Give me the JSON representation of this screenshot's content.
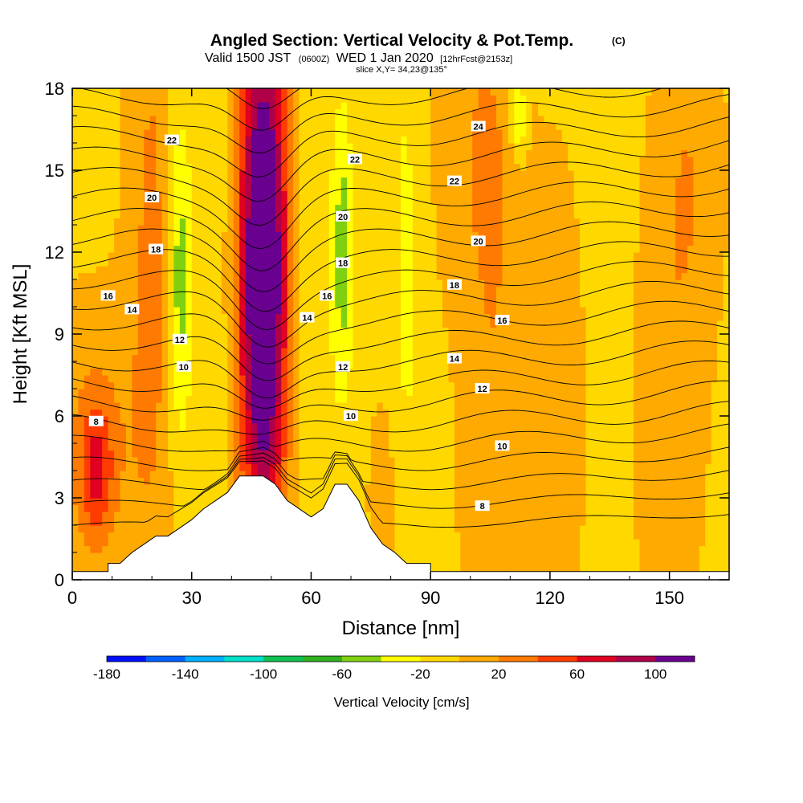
{
  "titles": {
    "main": "Angled Section: Vertical Velocity & Pot.Temp.",
    "main_tag": "(C)",
    "valid_prefix": "Valid 1500 JST",
    "valid_z": "(0600Z)",
    "valid_date": "WED 1 Jan 2020",
    "valid_fcst": "[12hrFcst@2153z]",
    "slice": "slice X,Y= 34,23@135°"
  },
  "chart_data": {
    "type": "heatmap",
    "xlabel": "Distance [nm]",
    "ylabel": "Height [Kft MSL]",
    "xlim": [
      0,
      165
    ],
    "ylim": [
      0,
      18
    ],
    "xticks": [
      0,
      30,
      60,
      90,
      120,
      150
    ],
    "yticks": [
      0,
      3,
      6,
      9,
      12,
      15,
      18
    ],
    "colorbar": {
      "label": "Vertical Velocity [cm/s]",
      "levels": [
        -180,
        -160,
        -140,
        -120,
        -100,
        -80,
        -60,
        -40,
        -20,
        0,
        20,
        40,
        60,
        80,
        100,
        120
      ],
      "tick_labels": [
        "-180",
        "-140",
        "-100",
        "-60",
        "-20",
        "20",
        "60",
        "100"
      ],
      "tick_values": [
        -180,
        -140,
        -100,
        -60,
        -20,
        20,
        60,
        100
      ],
      "colors": [
        "#0010ff",
        "#0060ff",
        "#00b0ff",
        "#00e0c8",
        "#10c050",
        "#30b020",
        "#80d010",
        "#ffff00",
        "#ffd800",
        "#ffaa00",
        "#ff7a00",
        "#ff3c00",
        "#e00020",
        "#b00048",
        "#6a0090"
      ]
    },
    "velocity_field": {
      "background_cm_s": -5,
      "features": [
        {
          "x": 48,
          "y": 11,
          "peak_cm_s": 110,
          "width_nm": 5,
          "height_kft": 8
        },
        {
          "x": 48,
          "y": 12,
          "peak_cm_s": 60,
          "width_nm": 8,
          "height_kft": 14
        },
        {
          "x": 20,
          "y": 12,
          "peak_cm_s": 30,
          "width_nm": 6,
          "height_kft": 12
        },
        {
          "x": 27,
          "y": 11,
          "peak_cm_s": -50,
          "width_nm": 3,
          "height_kft": 6
        },
        {
          "x": 68,
          "y": 12,
          "peak_cm_s": -45,
          "width_nm": 2.5,
          "height_kft": 5
        },
        {
          "x": 6,
          "y": 4,
          "peak_cm_s": 55,
          "width_nm": 4,
          "height_kft": 2.5
        },
        {
          "x": 6,
          "y": 5,
          "peak_cm_s": 25,
          "width_nm": 12,
          "height_kft": 5
        },
        {
          "x": 106,
          "y": 8,
          "peak_cm_s": 22,
          "width_nm": 8,
          "height_kft": 16
        },
        {
          "x": 100,
          "y": 16,
          "peak_cm_s": 15,
          "width_nm": 10,
          "height_kft": 6
        },
        {
          "x": 122,
          "y": 6,
          "peak_cm_s": 18,
          "width_nm": 6,
          "height_kft": 9
        },
        {
          "x": 150,
          "y": 6,
          "peak_cm_s": 20,
          "width_nm": 8,
          "height_kft": 8
        },
        {
          "x": 155,
          "y": 15,
          "peak_cm_s": 22,
          "width_nm": 8,
          "height_kft": 6
        },
        {
          "x": 78,
          "y": 3,
          "peak_cm_s": 25,
          "width_nm": 3,
          "height_kft": 3
        },
        {
          "x": 60,
          "y": 10,
          "peak_cm_s": -18,
          "width_nm": 6,
          "height_kft": 10
        },
        {
          "x": 112,
          "y": 17,
          "peak_cm_s": -45,
          "width_nm": 2,
          "height_kft": 1.5
        },
        {
          "x": 84,
          "y": 12,
          "peak_cm_s": -18,
          "width_nm": 4,
          "height_kft": 14
        },
        {
          "x": 36,
          "y": 12,
          "peak_cm_s": -15,
          "width_nm": 4,
          "height_kft": 14
        }
      ]
    },
    "terrain": {
      "x": [
        0,
        9,
        9,
        12,
        15,
        18,
        21,
        24,
        27,
        30,
        33,
        36,
        39,
        42,
        45,
        48,
        51,
        54,
        57,
        60,
        63,
        66,
        69,
        72,
        75,
        78,
        81,
        84,
        87,
        90,
        90,
        165
      ],
      "y_kft": [
        0.3,
        0.3,
        0.6,
        0.6,
        1.0,
        1.3,
        1.6,
        1.6,
        1.9,
        2.2,
        2.6,
        2.9,
        3.2,
        3.8,
        3.8,
        3.8,
        3.5,
        2.9,
        2.6,
        2.3,
        2.6,
        3.5,
        3.5,
        2.9,
        1.9,
        1.3,
        1.0,
        0.6,
        0.6,
        0.6,
        0.3,
        0.3
      ]
    },
    "potential_temperature": {
      "levels": [
        8,
        10,
        12,
        14,
        16,
        18,
        20,
        22,
        24
      ],
      "labels": [
        {
          "text": "8",
          "x": 6,
          "y": 5.8
        },
        {
          "text": "10",
          "x": 28,
          "y": 7.8
        },
        {
          "text": "12",
          "x": 27,
          "y": 8.8
        },
        {
          "text": "14",
          "x": 15,
          "y": 9.9
        },
        {
          "text": "16",
          "x": 9,
          "y": 10.4
        },
        {
          "text": "18",
          "x": 21,
          "y": 12.1
        },
        {
          "text": "20",
          "x": 20,
          "y": 14.0
        },
        {
          "text": "22",
          "x": 25,
          "y": 16.1
        },
        {
          "text": "14",
          "x": 59,
          "y": 9.6
        },
        {
          "text": "16",
          "x": 64,
          "y": 10.4
        },
        {
          "text": "18",
          "x": 68,
          "y": 11.6
        },
        {
          "text": "20",
          "x": 68,
          "y": 13.3
        },
        {
          "text": "22",
          "x": 71,
          "y": 15.4
        },
        {
          "text": "12",
          "x": 68,
          "y": 7.8
        },
        {
          "text": "10",
          "x": 70,
          "y": 6.0
        },
        {
          "text": "8",
          "x": 103,
          "y": 2.7
        },
        {
          "text": "10",
          "x": 108,
          "y": 4.9
        },
        {
          "text": "12",
          "x": 103,
          "y": 7.0
        },
        {
          "text": "14",
          "x": 96,
          "y": 8.1
        },
        {
          "text": "16",
          "x": 108,
          "y": 9.5
        },
        {
          "text": "18",
          "x": 96,
          "y": 10.8
        },
        {
          "text": "20",
          "x": 102,
          "y": 12.4
        },
        {
          "text": "22",
          "x": 96,
          "y": 14.6
        },
        {
          "text": "24",
          "x": 102,
          "y": 16.6
        }
      ]
    }
  }
}
